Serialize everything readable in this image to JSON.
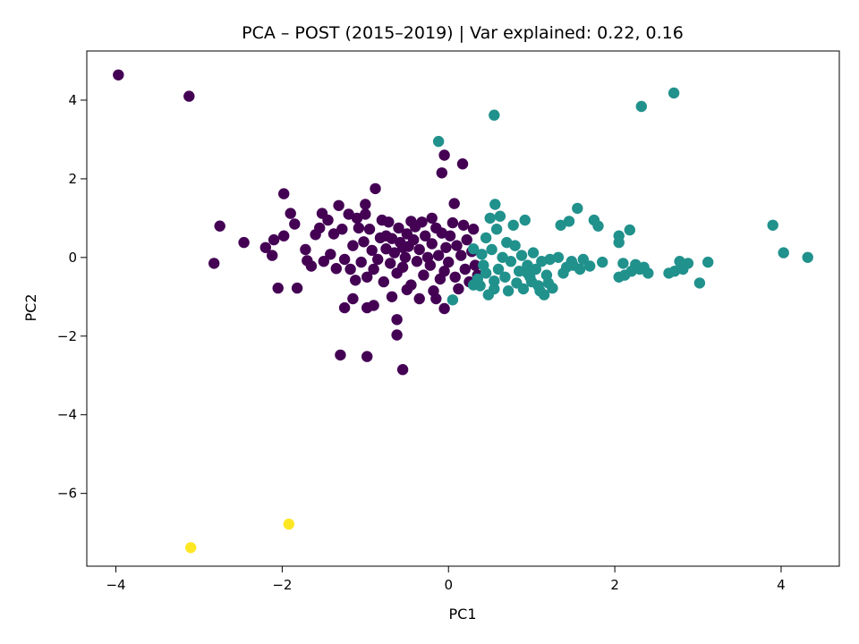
{
  "chart_data": {
    "type": "scatter",
    "title": "PCA – POST (2015–2019) | Var explained: 0.22, 0.16",
    "xlabel": "PC1",
    "ylabel": "PC2",
    "xlim": [
      -4.35,
      4.7
    ],
    "ylim": [
      -7.85,
      5.25
    ],
    "xticks": [
      -4,
      -2,
      0,
      2,
      4
    ],
    "yticks": [
      -6,
      -4,
      -2,
      0,
      2,
      4
    ],
    "xtick_labels": [
      "−4",
      "−2",
      "0",
      "2",
      "4"
    ],
    "ytick_labels": [
      "−6",
      "−4",
      "−2",
      "0",
      "2",
      "4"
    ],
    "grid": false,
    "legend": "none",
    "series": [
      {
        "color": "#440154",
        "points": [
          [
            -3.97,
            4.64
          ],
          [
            -3.12,
            4.1
          ],
          [
            -2.75,
            0.8
          ],
          [
            -2.82,
            -0.15
          ],
          [
            -2.46,
            0.38
          ],
          [
            -2.2,
            0.25
          ],
          [
            -2.12,
            0.05
          ],
          [
            -2.1,
            0.45
          ],
          [
            -2.05,
            -0.78
          ],
          [
            -1.98,
            1.62
          ],
          [
            -1.98,
            0.55
          ],
          [
            -1.9,
            1.12
          ],
          [
            -1.85,
            0.85
          ],
          [
            -1.82,
            -0.78
          ],
          [
            -1.72,
            0.2
          ],
          [
            -1.7,
            -0.08
          ],
          [
            -1.65,
            -0.22
          ],
          [
            -1.6,
            0.58
          ],
          [
            -1.55,
            0.75
          ],
          [
            -1.52,
            1.12
          ],
          [
            -1.5,
            -0.1
          ],
          [
            -1.45,
            0.95
          ],
          [
            -1.42,
            0.08
          ],
          [
            -1.38,
            0.6
          ],
          [
            -1.35,
            -0.28
          ],
          [
            -1.32,
            1.32
          ],
          [
            -1.28,
            0.72
          ],
          [
            -1.25,
            -0.05
          ],
          [
            -1.2,
            1.1
          ],
          [
            -1.18,
            -0.3
          ],
          [
            -1.15,
            0.3
          ],
          [
            -1.12,
            -0.58
          ],
          [
            -1.1,
            1.0
          ],
          [
            -1.08,
            0.75
          ],
          [
            -1.05,
            -0.12
          ],
          [
            -1.02,
            0.4
          ],
          [
            -1.0,
            1.1
          ],
          [
            -0.98,
            -0.5
          ],
          [
            -0.95,
            0.72
          ],
          [
            -0.92,
            0.18
          ],
          [
            -0.9,
            -0.3
          ],
          [
            -0.88,
            1.75
          ],
          [
            -0.85,
            -0.05
          ],
          [
            -0.82,
            0.5
          ],
          [
            -0.8,
            0.95
          ],
          [
            -0.78,
            -0.62
          ],
          [
            -0.75,
            0.22
          ],
          [
            -0.72,
            0.9
          ],
          [
            -0.7,
            -0.15
          ],
          [
            -0.68,
            0.48
          ],
          [
            -0.65,
            0.12
          ],
          [
            -0.62,
            -0.4
          ],
          [
            -0.6,
            0.75
          ],
          [
            -0.58,
            0.38
          ],
          [
            -0.55,
            -0.25
          ],
          [
            -0.52,
            0.0
          ],
          [
            -0.5,
            0.6
          ],
          [
            -0.48,
            0.28
          ],
          [
            -0.45,
            -0.7
          ],
          [
            -0.42,
            0.45
          ],
          [
            -0.4,
            0.78
          ],
          [
            -0.38,
            -0.1
          ],
          [
            -0.35,
            0.2
          ],
          [
            -0.32,
            0.9
          ],
          [
            -0.3,
            -0.45
          ],
          [
            -0.28,
            0.55
          ],
          [
            -0.25,
            0.0
          ],
          [
            -0.22,
            -0.2
          ],
          [
            -0.2,
            0.35
          ],
          [
            -0.18,
            -0.85
          ],
          [
            -0.15,
            0.75
          ],
          [
            -0.12,
            0.05
          ],
          [
            -0.1,
            -0.55
          ],
          [
            -0.08,
            0.62
          ],
          [
            -0.05,
            -0.35
          ],
          [
            -0.03,
            0.25
          ],
          [
            0.0,
            -0.12
          ],
          [
            0.02,
            0.55
          ],
          [
            0.05,
            0.88
          ],
          [
            0.08,
            -0.5
          ],
          [
            0.1,
            0.3
          ],
          [
            0.12,
            -0.8
          ],
          [
            0.15,
            0.05
          ],
          [
            0.18,
            0.82
          ],
          [
            0.2,
            -0.3
          ],
          [
            0.22,
            0.45
          ],
          [
            0.25,
            -0.62
          ],
          [
            0.28,
            0.15
          ],
          [
            0.3,
            0.72
          ],
          [
            0.32,
            -0.2
          ],
          [
            0.35,
            -0.45
          ],
          [
            -0.08,
            2.15
          ],
          [
            -0.05,
            2.6
          ],
          [
            0.17,
            2.38
          ],
          [
            0.07,
            1.37
          ],
          [
            -0.45,
            0.92
          ],
          [
            -0.2,
            1.0
          ],
          [
            -0.05,
            -1.3
          ],
          [
            -0.15,
            -1.05
          ],
          [
            -0.55,
            -2.85
          ],
          [
            -0.62,
            -1.58
          ],
          [
            -0.62,
            -1.97
          ],
          [
            -0.98,
            -2.52
          ],
          [
            -1.3,
            -2.48
          ],
          [
            -1.25,
            -1.28
          ],
          [
            -1.15,
            -1.05
          ],
          [
            -0.98,
            -1.28
          ],
          [
            -0.9,
            -1.22
          ],
          [
            -0.68,
            -1.0
          ],
          [
            -0.5,
            -0.82
          ],
          [
            -0.35,
            -1.05
          ],
          [
            -1.0,
            1.35
          ],
          [
            -0.55,
            0.25
          ],
          [
            -0.75,
            0.55
          ]
        ]
      },
      {
        "color": "#21918c",
        "points": [
          [
            -0.12,
            2.95
          ],
          [
            0.55,
            3.62
          ],
          [
            2.32,
            3.84
          ],
          [
            2.71,
            4.18
          ],
          [
            0.3,
            0.22
          ],
          [
            0.35,
            -0.55
          ],
          [
            0.38,
            -0.72
          ],
          [
            0.4,
            0.08
          ],
          [
            0.42,
            -0.2
          ],
          [
            0.45,
            0.5
          ],
          [
            0.48,
            -0.95
          ],
          [
            0.5,
            1.0
          ],
          [
            0.52,
            0.2
          ],
          [
            0.55,
            -0.6
          ],
          [
            0.56,
            1.35
          ],
          [
            0.58,
            0.72
          ],
          [
            0.6,
            -0.3
          ],
          [
            0.62,
            1.05
          ],
          [
            0.65,
            0.0
          ],
          [
            0.68,
            -0.5
          ],
          [
            0.7,
            0.38
          ],
          [
            0.72,
            -0.85
          ],
          [
            0.75,
            -0.1
          ],
          [
            0.78,
            0.82
          ],
          [
            0.8,
            0.3
          ],
          [
            0.82,
            -0.65
          ],
          [
            0.85,
            -0.35
          ],
          [
            0.88,
            0.05
          ],
          [
            0.9,
            -0.8
          ],
          [
            0.92,
            0.95
          ],
          [
            0.95,
            -0.2
          ],
          [
            0.98,
            -0.5
          ],
          [
            1.0,
            -0.62
          ],
          [
            1.02,
            0.12
          ],
          [
            1.05,
            -0.3
          ],
          [
            1.08,
            -0.72
          ],
          [
            1.1,
            -0.85
          ],
          [
            1.12,
            -0.1
          ],
          [
            1.15,
            -0.95
          ],
          [
            1.18,
            -0.45
          ],
          [
            1.2,
            -0.65
          ],
          [
            1.22,
            -0.05
          ],
          [
            1.25,
            -0.78
          ],
          [
            1.35,
            0.82
          ],
          [
            1.38,
            -0.4
          ],
          [
            1.42,
            -0.25
          ],
          [
            1.45,
            0.92
          ],
          [
            1.48,
            -0.1
          ],
          [
            1.5,
            -0.2
          ],
          [
            1.55,
            1.25
          ],
          [
            1.58,
            -0.3
          ],
          [
            1.62,
            -0.05
          ],
          [
            1.7,
            -0.22
          ],
          [
            1.75,
            0.95
          ],
          [
            1.8,
            0.8
          ],
          [
            1.85,
            -0.12
          ],
          [
            2.05,
            0.55
          ],
          [
            2.05,
            0.38
          ],
          [
            2.05,
            -0.5
          ],
          [
            2.1,
            -0.15
          ],
          [
            2.12,
            -0.45
          ],
          [
            2.18,
            0.7
          ],
          [
            2.2,
            -0.35
          ],
          [
            2.25,
            -0.18
          ],
          [
            2.3,
            -0.3
          ],
          [
            2.35,
            -0.25
          ],
          [
            2.4,
            -0.4
          ],
          [
            2.65,
            -0.4
          ],
          [
            2.72,
            -0.35
          ],
          [
            2.78,
            -0.1
          ],
          [
            2.82,
            -0.3
          ],
          [
            2.88,
            -0.15
          ],
          [
            3.02,
            -0.65
          ],
          [
            3.12,
            -0.12
          ],
          [
            3.9,
            0.82
          ],
          [
            4.03,
            0.12
          ],
          [
            4.32,
            0.0
          ],
          [
            0.05,
            -1.08
          ],
          [
            0.3,
            -0.7
          ],
          [
            0.45,
            -0.4
          ],
          [
            0.55,
            -0.8
          ],
          [
            0.95,
            -0.4
          ],
          [
            1.32,
            0.0
          ],
          [
            2.8,
            -0.2
          ]
        ]
      },
      {
        "color": "#fde725",
        "points": [
          [
            -3.1,
            -7.38
          ],
          [
            -1.92,
            -6.78
          ]
        ]
      }
    ]
  }
}
